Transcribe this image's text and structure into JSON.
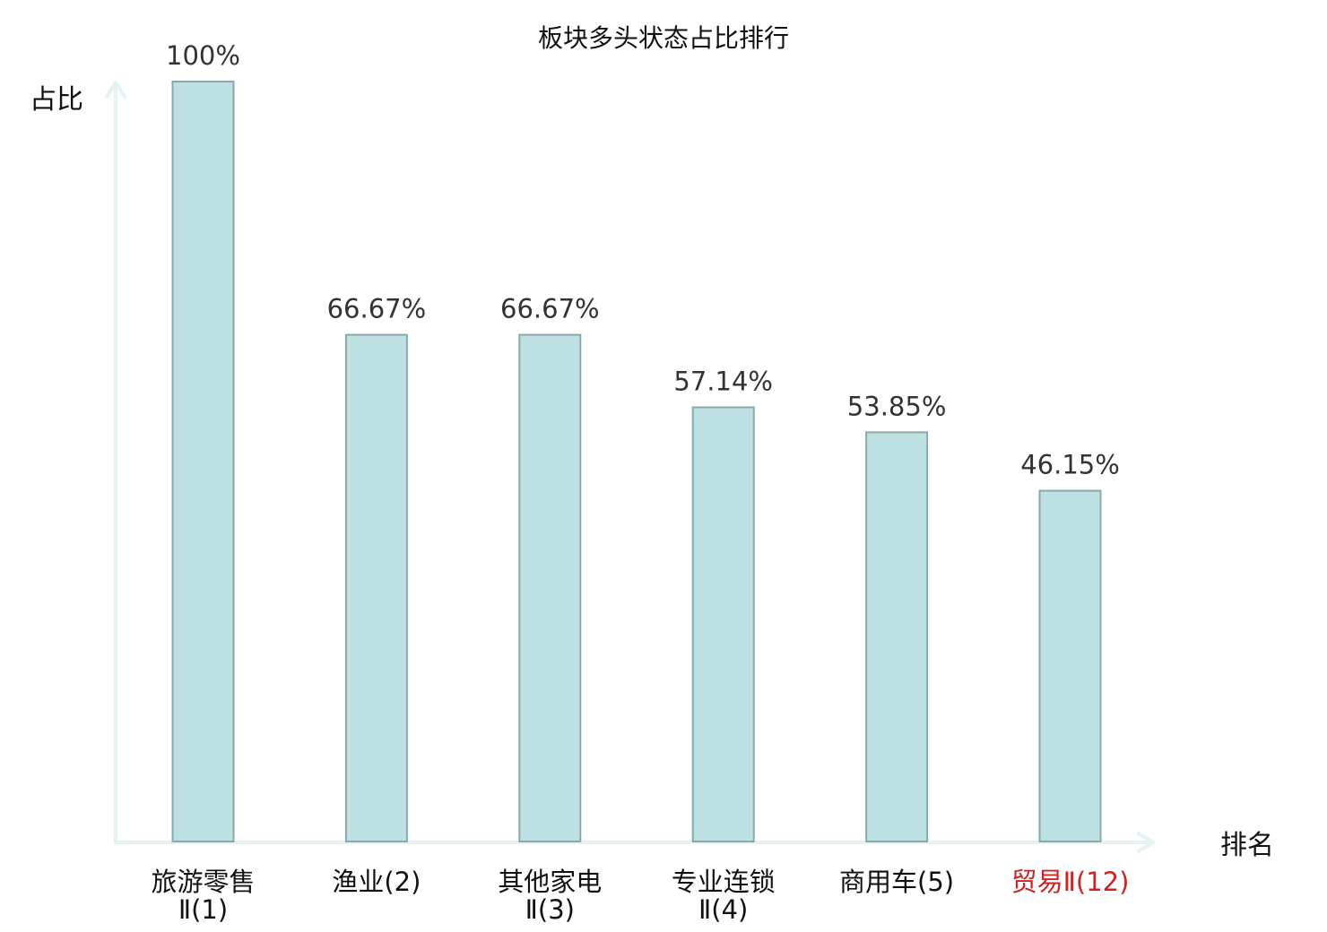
{
  "chart_data": {
    "type": "bar",
    "title": "板块多头状态占比排行",
    "ylabel": "占比",
    "xlabel": "排名",
    "ylim": [
      0,
      100
    ],
    "grid": false,
    "categories": [
      {
        "line1": "旅游零售",
        "line2": "Ⅱ(1)",
        "highlight": false
      },
      {
        "line1": "渔业(2)",
        "line2": "",
        "highlight": false
      },
      {
        "line1": "其他家电",
        "line2": "Ⅱ(3)",
        "highlight": false
      },
      {
        "line1": "专业连锁",
        "line2": "Ⅱ(4)",
        "highlight": false
      },
      {
        "line1": "商用车(5)",
        "line2": "",
        "highlight": false
      },
      {
        "line1": "贸易Ⅱ(12)",
        "line2": "",
        "highlight": true
      }
    ],
    "values": [
      100,
      66.67,
      66.67,
      57.14,
      53.85,
      46.15
    ],
    "value_labels": [
      "100%",
      "66.67%",
      "66.67%",
      "57.14%",
      "53.85%",
      "46.15%"
    ],
    "colors": {
      "bar_fill": "#bde0e3",
      "bar_stroke": "#8aa9ad",
      "axis": "#e2f3f1",
      "highlight_text": "#d42020"
    }
  }
}
